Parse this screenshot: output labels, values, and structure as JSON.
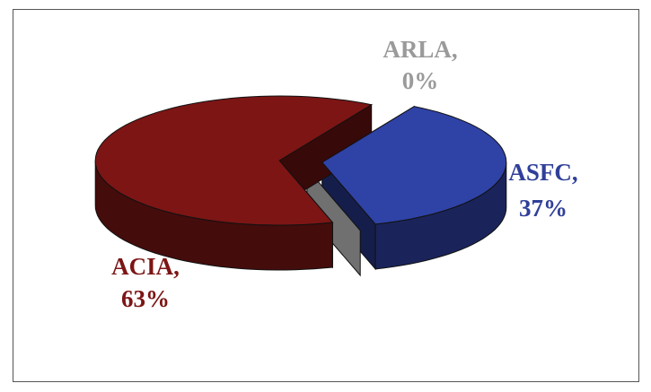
{
  "chart_data": {
    "type": "pie",
    "three_d": true,
    "exploded": true,
    "categories": [
      "ASFC,",
      "ARLA,",
      "ACIA,"
    ],
    "values": [
      37,
      0,
      63
    ],
    "value_labels": [
      "37%",
      "0%",
      "63%"
    ],
    "colors": [
      "#2f42a6",
      "#707070",
      "#7d1515"
    ],
    "label_colors": [
      "#2f3f99",
      "#9a9a9a",
      "#7d1515"
    ]
  }
}
